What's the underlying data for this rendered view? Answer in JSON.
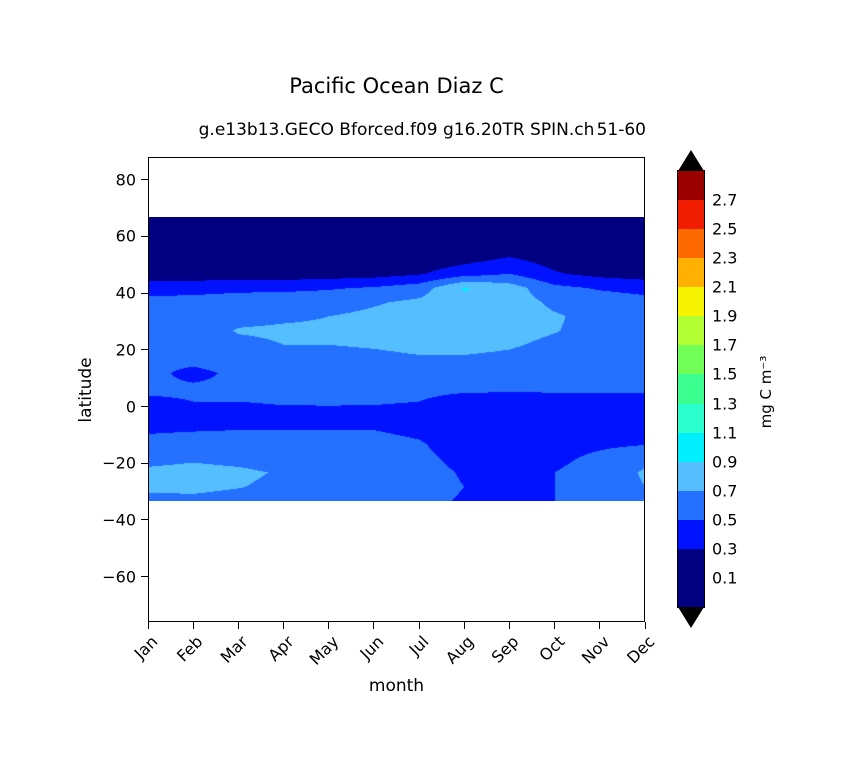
{
  "header": {
    "title": "Pacific Ocean Diaz C",
    "subtitle": "g.e13b13.GECO Bforced.f09 g16.20TR SPIN.ch",
    "corner_label": "51-60"
  },
  "axes": {
    "x_label": "month",
    "y_label": "latitude"
  },
  "chart_data": {
    "type": "heatmap",
    "subtype": "filled-contour",
    "title": "Pacific Ocean Diaz C",
    "subtitle": "g.e13b13.GECO Bforced.f09 g16.20TR SPIN.ch 51-60",
    "xlabel": "month",
    "ylabel": "latitude",
    "x_categories": [
      "Jan",
      "Feb",
      "Mar",
      "Apr",
      "May",
      "Jun",
      "Jul",
      "Aug",
      "Sep",
      "Oct",
      "Nov",
      "Dec"
    ],
    "y_ticks": [
      80,
      60,
      40,
      20,
      0,
      -20,
      -40,
      -60
    ],
    "y_tick_labels": [
      "80",
      "60",
      "40",
      "20",
      "0",
      "−20",
      "−40",
      "−60"
    ],
    "ylim": [
      -76,
      88
    ],
    "data_lat_extent": [
      67,
      -33
    ],
    "grid": false,
    "lat_grid": [
      67,
      62,
      57,
      52,
      47,
      42,
      37,
      32,
      27,
      22,
      17,
      12,
      7,
      2,
      -3,
      -8,
      -13,
      -18,
      -23,
      -28,
      -33
    ],
    "values_by_lat": [
      [
        0.15,
        0.15,
        0.15,
        0.15,
        0.15,
        0.15,
        0.15,
        0.15,
        0.15,
        0.15,
        0.15,
        0.15
      ],
      [
        0.15,
        0.15,
        0.15,
        0.15,
        0.15,
        0.15,
        0.15,
        0.15,
        0.15,
        0.15,
        0.15,
        0.15
      ],
      [
        0.15,
        0.15,
        0.15,
        0.15,
        0.15,
        0.15,
        0.15,
        0.15,
        0.15,
        0.15,
        0.15,
        0.15
      ],
      [
        0.15,
        0.15,
        0.15,
        0.15,
        0.15,
        0.15,
        0.17,
        0.24,
        0.33,
        0.22,
        0.17,
        0.15
      ],
      [
        0.18,
        0.17,
        0.17,
        0.18,
        0.2,
        0.22,
        0.28,
        0.42,
        0.5,
        0.32,
        0.24,
        0.2
      ],
      [
        0.42,
        0.44,
        0.46,
        0.46,
        0.48,
        0.52,
        0.6,
        0.92,
        0.8,
        0.55,
        0.48,
        0.44
      ],
      [
        0.56,
        0.56,
        0.58,
        0.6,
        0.62,
        0.68,
        0.74,
        0.85,
        0.8,
        0.66,
        0.6,
        0.56
      ],
      [
        0.6,
        0.62,
        0.66,
        0.68,
        0.7,
        0.74,
        0.78,
        0.82,
        0.79,
        0.72,
        0.64,
        0.6
      ],
      [
        0.6,
        0.63,
        0.71,
        0.72,
        0.72,
        0.75,
        0.78,
        0.78,
        0.76,
        0.71,
        0.63,
        0.6
      ],
      [
        0.58,
        0.6,
        0.67,
        0.7,
        0.7,
        0.72,
        0.75,
        0.75,
        0.72,
        0.66,
        0.6,
        0.57
      ],
      [
        0.56,
        0.57,
        0.6,
        0.62,
        0.63,
        0.65,
        0.68,
        0.68,
        0.66,
        0.62,
        0.58,
        0.56
      ],
      [
        0.56,
        0.44,
        0.55,
        0.58,
        0.6,
        0.6,
        0.62,
        0.62,
        0.6,
        0.58,
        0.56,
        0.55
      ],
      [
        0.54,
        0.53,
        0.54,
        0.55,
        0.56,
        0.56,
        0.56,
        0.55,
        0.54,
        0.53,
        0.53,
        0.53
      ],
      [
        0.47,
        0.5,
        0.5,
        0.52,
        0.52,
        0.52,
        0.5,
        0.42,
        0.42,
        0.45,
        0.46,
        0.46
      ],
      [
        0.4,
        0.41,
        0.42,
        0.44,
        0.45,
        0.44,
        0.42,
        0.36,
        0.35,
        0.36,
        0.4,
        0.4
      ],
      [
        0.48,
        0.49,
        0.5,
        0.5,
        0.5,
        0.5,
        0.46,
        0.37,
        0.36,
        0.38,
        0.44,
        0.48
      ],
      [
        0.55,
        0.58,
        0.58,
        0.58,
        0.58,
        0.56,
        0.52,
        0.4,
        0.4,
        0.42,
        0.46,
        0.49
      ],
      [
        0.64,
        0.67,
        0.64,
        0.6,
        0.6,
        0.58,
        0.55,
        0.44,
        0.42,
        0.45,
        0.55,
        0.66
      ],
      [
        0.74,
        0.77,
        0.74,
        0.68,
        0.64,
        0.6,
        0.58,
        0.48,
        0.44,
        0.5,
        0.6,
        0.72
      ],
      [
        0.74,
        0.75,
        0.71,
        0.65,
        0.62,
        0.6,
        0.58,
        0.5,
        0.46,
        0.5,
        0.6,
        0.7
      ],
      [
        0.64,
        0.65,
        0.62,
        0.6,
        0.58,
        0.57,
        0.55,
        0.48,
        0.45,
        0.5,
        0.55,
        0.62
      ]
    ],
    "levels": [
      0.1,
      0.3,
      0.5,
      0.7,
      0.9,
      1.1,
      1.3,
      1.5,
      1.7,
      1.9,
      2.1,
      2.3,
      2.5,
      2.7,
      2.9
    ],
    "colorbar": {
      "label": "mg C m⁻³",
      "tick_labels": [
        "0.1",
        "0.3",
        "0.5",
        "0.7",
        "0.9",
        "1.1",
        "1.3",
        "1.5",
        "1.7",
        "1.9",
        "2.1",
        "2.3",
        "2.5",
        "2.7"
      ],
      "segment_colors_bottom_to_top": [
        "#000080",
        "#000080",
        "#0012FF",
        "#2470FF",
        "#55BEFF",
        "#00EFFF",
        "#2AFFCE",
        "#3BFF8F",
        "#71FF57",
        "#B4FF33",
        "#F7F400",
        "#FFB000",
        "#FF6A00",
        "#F01D00",
        "#9B0000"
      ],
      "extend_arrow_color": "#000000"
    }
  }
}
